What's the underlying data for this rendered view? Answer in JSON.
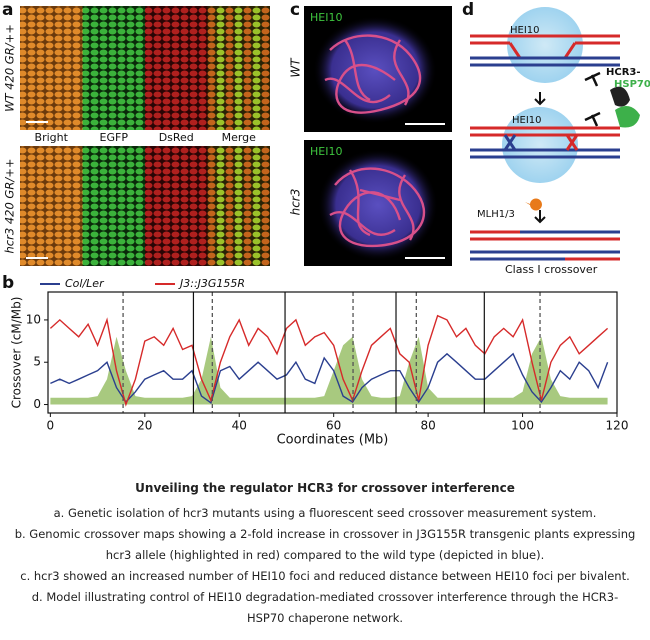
{
  "panel_a": {
    "label": "a",
    "rows": [
      "WT 420 GR/++",
      "hcr3 420 GR/++"
    ],
    "columns": [
      "Bright",
      "EGFP",
      "DsRed",
      "Merge"
    ]
  },
  "panel_c": {
    "label": "c",
    "images": [
      {
        "stain": "HEI10",
        "genotype": "WT"
      },
      {
        "stain": "HEI10",
        "genotype": "hcr3"
      }
    ]
  },
  "panel_d": {
    "label": "d",
    "top_circle": "HEI10",
    "middle_circle": "HEI10",
    "chaperone_1": "HCR3-",
    "chaperone_2": "HSP70",
    "resolvase": "MLH1/3",
    "outcome": "Class I crossover"
  },
  "panel_b_label": "b",
  "chart_data": {
    "type": "line",
    "xlabel": "Coordinates (Mb)",
    "ylabel": "Crossover (cM/Mb)",
    "x": [
      0,
      2,
      4,
      6,
      8,
      10,
      12,
      14,
      16,
      18,
      20,
      22,
      24,
      26,
      28,
      30,
      32,
      34,
      36,
      38,
      40,
      42,
      44,
      46,
      48,
      50,
      52,
      54,
      56,
      58,
      60,
      62,
      64,
      66,
      68,
      70,
      72,
      74,
      76,
      78,
      80,
      82,
      84,
      86,
      88,
      90,
      92,
      94,
      96,
      98,
      100,
      102,
      104,
      106,
      108,
      110,
      112,
      114,
      116,
      118
    ],
    "series": [
      {
        "name": "Col/Ler",
        "color": "#2b3f8f",
        "values": [
          2.5,
          3,
          2.5,
          3,
          3.5,
          4,
          5,
          2,
          0.3,
          1.5,
          3,
          3.5,
          4,
          3,
          3,
          4,
          1,
          0.2,
          4,
          4.5,
          3,
          4,
          5,
          4,
          3,
          3.5,
          5,
          3,
          2.5,
          5.5,
          4,
          1,
          0.3,
          2,
          3,
          3.5,
          4,
          4,
          2,
          0.3,
          2,
          5,
          6,
          5,
          4,
          3,
          3,
          4,
          5,
          6,
          3.5,
          1.5,
          0.3,
          2,
          4,
          3,
          5,
          4,
          2,
          5
        ]
      },
      {
        "name": "J3::J3G155R",
        "color": "#d62a2a",
        "values": [
          9,
          10,
          9,
          8,
          9.5,
          7,
          10,
          4,
          0,
          3,
          7.5,
          8,
          7,
          9,
          6.5,
          7,
          3,
          0.5,
          5,
          8,
          10,
          7,
          9,
          8,
          6,
          9,
          10,
          7,
          8,
          8.5,
          7,
          3,
          0.5,
          4,
          7,
          8,
          9,
          6,
          5,
          0.5,
          7,
          10.5,
          10,
          8,
          9,
          7,
          6,
          8,
          9,
          8,
          10,
          5,
          0.5,
          5,
          7,
          8,
          6,
          7,
          8,
          9
        ]
      },
      {
        "color": "#a8c97f",
        "values": [
          0.8,
          0.8,
          0.8,
          0.8,
          0.8,
          1,
          3,
          8,
          4,
          1,
          0.8,
          0.8,
          0.8,
          0.8,
          0.8,
          1,
          3,
          8,
          2,
          0.8,
          0.8,
          0.8,
          0.8,
          0.8,
          0.8,
          0.8,
          0.8,
          0.8,
          0.8,
          1,
          4,
          7,
          8,
          3,
          1,
          0.8,
          0.8,
          1,
          5,
          8,
          2,
          0.8,
          0.8,
          0.8,
          0.8,
          0.8,
          0.8,
          0.8,
          0.8,
          0.8,
          1.5,
          6,
          8,
          3,
          1,
          0.8,
          0.8,
          0.8,
          0.8,
          0.8
        ]
      }
    ],
    "chromosome_boundaries": [
      30.3,
      49.7,
      73.2,
      91.9
    ],
    "centromeres": [
      15.4,
      34.3,
      64.1,
      77.5,
      103.7
    ],
    "xlim": [
      -0.5,
      120
    ],
    "xticks": [
      0,
      20,
      40,
      60,
      80,
      100,
      120
    ],
    "ylim": [
      -1,
      13.3
    ],
    "yticks": [
      0,
      5,
      10
    ]
  },
  "caption": {
    "title": "Unveiling the regulator HCR3 for crossover interference",
    "lines": [
      "a. Genetic isolation of hcr3 mutants using a fluorescent seed crossover measurement system.",
      "b. Genomic crossover maps showing a 2-fold increase in crossover in J3G155R transgenic plants expressing hcr3 allele (highlighted in red) compared to the wild type (depicted in blue).",
      "c. hcr3 showed an increased number of HEI10 foci and reduced distance between HEI10 foci per bivalent.",
      "d. Model illustrating control of HEI10 degradation-mediated crossover interference through the HCR3-HSP70 chaperone network."
    ]
  }
}
